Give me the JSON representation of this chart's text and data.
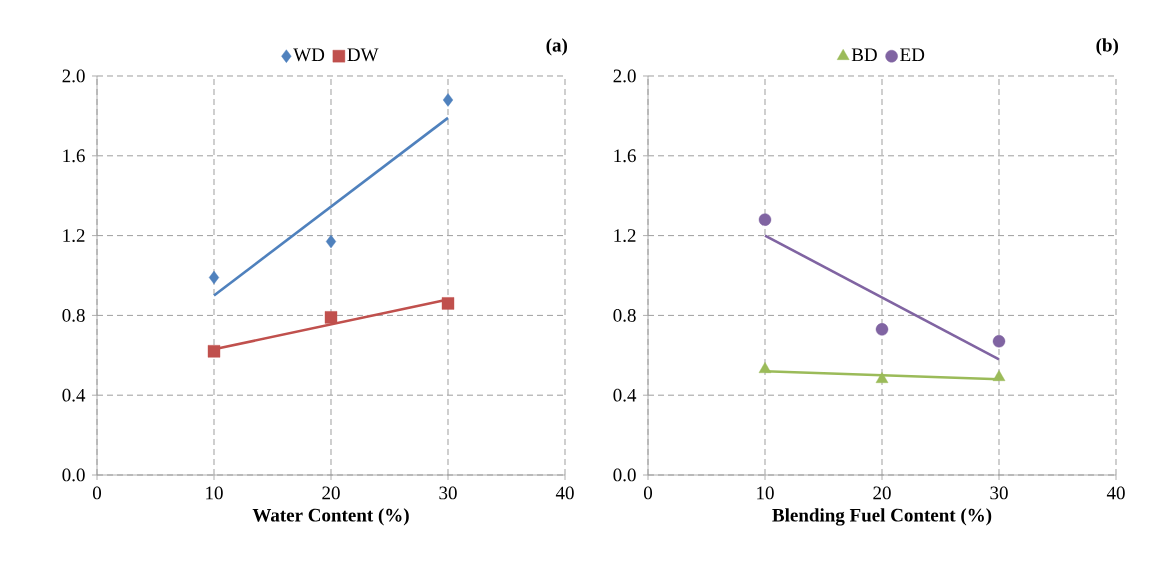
{
  "chart_data": [
    {
      "type": "scatter",
      "xlabel": "Water Content (%)",
      "annotations": [
        "(a)"
      ],
      "xlim": [
        0,
        40
      ],
      "xticks": [
        0,
        10,
        20,
        30,
        40
      ],
      "ylim": [
        0,
        2
      ],
      "yticks": [
        {
          "value": 0,
          "label": "0.0"
        },
        {
          "value": 0.4,
          "label": "0.4"
        },
        {
          "value": 0.8,
          "label": "0.8"
        },
        {
          "value": 1.2,
          "label": "1.2"
        },
        {
          "value": 1.6,
          "label": "1.6"
        },
        {
          "value": 2,
          "label": "2.0"
        }
      ],
      "grid": true,
      "legend": "top",
      "series": [
        {
          "name": "WD",
          "color": "#4f81bd",
          "marker": "diamond",
          "x": [
            10,
            20,
            30
          ],
          "values": [
            0.99,
            1.17,
            1.88
          ]
        },
        {
          "name": "DW",
          "color": "#c0504d",
          "marker": "square",
          "x": [
            10,
            20,
            30
          ],
          "values": [
            0.62,
            0.79,
            0.86
          ]
        },
        {
          "type": "line",
          "color": "#4f81bd",
          "marker": "none",
          "x": [
            10,
            30
          ],
          "values": [
            0.9,
            1.79
          ]
        },
        {
          "type": "line",
          "color": "#c0504d",
          "marker": "none",
          "x": [
            10,
            30
          ],
          "values": [
            0.63,
            0.88
          ]
        }
      ]
    },
    {
      "type": "scatter",
      "xlabel": "Blending Fuel Content (%)",
      "annotations": [
        "(b)"
      ],
      "xlim": [
        0,
        40
      ],
      "xticks": [
        0,
        10,
        20,
        30,
        40
      ],
      "ylim": [
        0,
        2
      ],
      "yticks": [
        {
          "value": 0,
          "label": "0.0"
        },
        {
          "value": 0.4,
          "label": "0.4"
        },
        {
          "value": 0.8,
          "label": "0.8"
        },
        {
          "value": 1.2,
          "label": "1.2"
        },
        {
          "value": 1.6,
          "label": "1.6"
        },
        {
          "value": 2,
          "label": "2.0"
        }
      ],
      "grid": true,
      "legend": "top",
      "series": [
        {
          "name": "BD",
          "color": "#9bbb59",
          "marker": "triangle",
          "x": [
            10,
            20,
            30
          ],
          "values": [
            0.53,
            0.48,
            0.49
          ]
        },
        {
          "name": "ED",
          "color": "#8064a2",
          "marker": "circle",
          "x": [
            10,
            20,
            30
          ],
          "values": [
            1.28,
            0.73,
            0.67
          ]
        },
        {
          "type": "line",
          "color": "#9bbb59",
          "marker": "none",
          "x": [
            10,
            30
          ],
          "values": [
            0.52,
            0.48
          ]
        },
        {
          "type": "line",
          "color": "#8064a2",
          "marker": "none",
          "x": [
            10,
            30
          ],
          "values": [
            1.2,
            0.58
          ]
        }
      ]
    }
  ]
}
